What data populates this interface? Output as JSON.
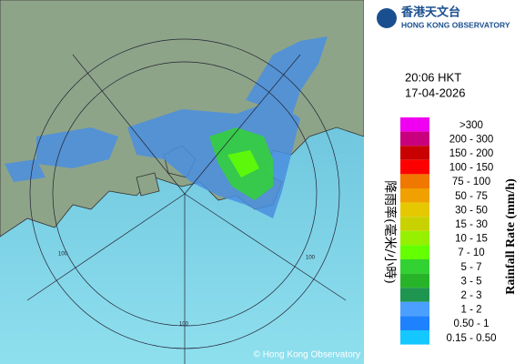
{
  "logo": {
    "name_zh": "香港天文台",
    "name_en": "HONG KONG OBSERVATORY"
  },
  "time": "20:06 HKT",
  "date": "17-04-2026",
  "legend_title_zh": "降雨率(毫米/小時)",
  "legend_title_en": "Rainfall Rate (mm/h)",
  "legend": [
    {
      "label": ">300",
      "color": "#f000f0"
    },
    {
      "label": "200 - 300",
      "color": "#c8007d"
    },
    {
      "label": "150 - 200",
      "color": "#c80000"
    },
    {
      "label": "100 - 150",
      "color": "#ff0000"
    },
    {
      "label": "75 - 100",
      "color": "#f07800"
    },
    {
      "label": "50 - 75",
      "color": "#f0a000"
    },
    {
      "label": "30 - 50",
      "color": "#e6c800"
    },
    {
      "label": "15 - 30",
      "color": "#c8d200"
    },
    {
      "label": "10 - 15",
      "color": "#96f000"
    },
    {
      "label": "7 - 10",
      "color": "#64ff00"
    },
    {
      "label": "5 - 7",
      "color": "#32d232"
    },
    {
      "label": "3 - 5",
      "color": "#28b428"
    },
    {
      "label": "2 - 3",
      "color": "#1e9650"
    },
    {
      "label": "1 - 2",
      "color": "#4ba0ff"
    },
    {
      "label": "0.50 - 1",
      "color": "#1e82ff"
    },
    {
      "label": "0.15 - 0.50",
      "color": "#14c8ff"
    }
  ],
  "ring_labels": [
    "100",
    "100",
    "100"
  ],
  "copyright": "© Hong Kong Observatory"
}
